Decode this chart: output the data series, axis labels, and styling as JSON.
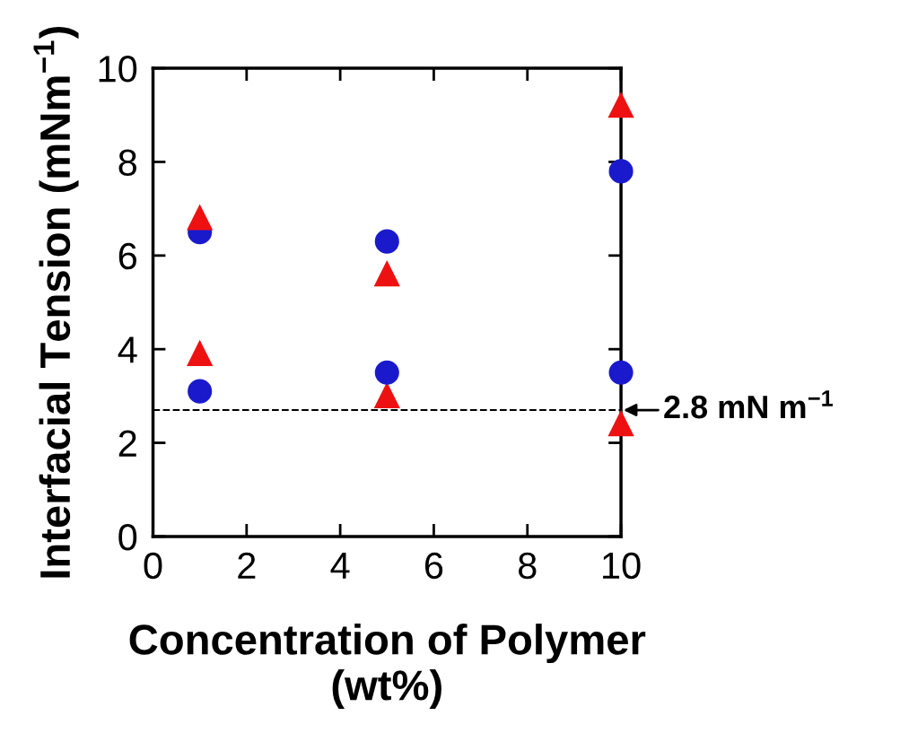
{
  "chart_data": {
    "type": "scatter",
    "xlabel": "Concentration of Polymer\n(wt%)",
    "ylabel": "Interfacial Tension (mNm$^{−1}$)",
    "x": [
      1,
      5,
      10
    ],
    "series": [
      {
        "color": "#1a1acc",
        "values": [
          6.5,
          6.3,
          7.8
        ],
        "marker": "circle"
      },
      {
        "color": "#ee1111",
        "values": [
          6.8,
          5.6,
          9.2
        ],
        "marker": "triangle"
      },
      {
        "color": "#ee1111",
        "values": [
          3.9,
          3.0,
          2.4
        ],
        "marker": "triangle"
      },
      {
        "color": "#1a1acc",
        "values": [
          3.1,
          3.5,
          3.5
        ],
        "marker": "circle"
      }
    ],
    "xlim": [
      0,
      10
    ],
    "ylim": [
      0,
      10
    ],
    "xticks": [
      0,
      2,
      4,
      6,
      8,
      10
    ],
    "yticks": [
      0,
      2,
      4,
      6,
      8,
      10
    ],
    "ref_lines": [
      {
        "axis": "y",
        "value": 2.7,
        "label": "2.8 mN m$^{−1}$",
        "color": "#000000",
        "line_style": "dashed"
      }
    ],
    "grid": false
  }
}
